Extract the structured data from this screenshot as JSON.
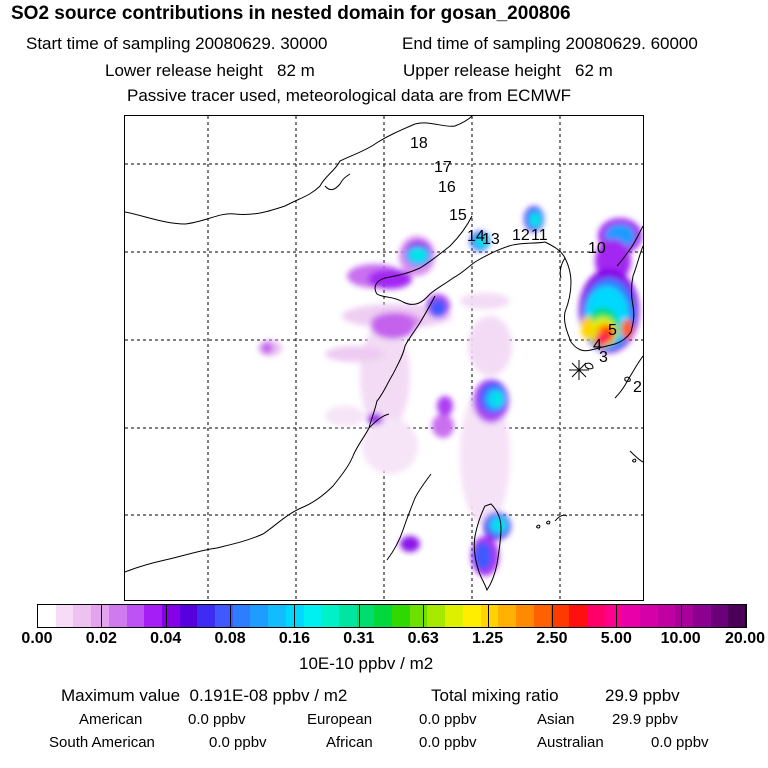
{
  "title": "SO2 source contributions in nested domain for gosan_200806",
  "header": {
    "start_label": "Start time of sampling",
    "start_value": "20080629. 30000",
    "end_label": "End time of sampling",
    "end_value": "20080629. 60000",
    "lower_label": "Lower release height",
    "lower_value": "82 m",
    "upper_label": "Upper release height",
    "upper_value": "62 m",
    "note": "Passive tracer used, meteorological data are from ECMWF"
  },
  "map": {
    "markers": [
      "18",
      "17",
      "16",
      "15",
      "14",
      "13",
      "12",
      "11",
      "10",
      "5",
      "4",
      "3",
      "2"
    ],
    "receptor": "gosan",
    "colors": {
      "coast": "#000000",
      "grid": "#000000"
    }
  },
  "colorbar": {
    "tick_labels": [
      "0.00",
      "0.02",
      "0.04",
      "0.08",
      "0.16",
      "0.31",
      "0.63",
      "1.25",
      "2.50",
      "5.00",
      "10.00",
      "20.00"
    ],
    "colors": [
      "#ffffff",
      "#f6dcf7",
      "#eec2f0",
      "#e3a3ee",
      "#cf7aef",
      "#bd52f5",
      "#a41ef5",
      "#8400e8",
      "#5600e0",
      "#3f2cf2",
      "#3f58ff",
      "#2f7dff",
      "#1f9cff",
      "#12bcff",
      "#00d8ff",
      "#00eff0",
      "#00f0c8",
      "#00e6a0",
      "#00dc6e",
      "#00d83c",
      "#2ed800",
      "#6ee000",
      "#a6e800",
      "#dcf000",
      "#ffee00",
      "#ffd200",
      "#ffb000",
      "#ff8a00",
      "#ff6000",
      "#ff3a00",
      "#ff1010",
      "#ff0068",
      "#ff0090",
      "#ea00a8",
      "#d600a8",
      "#c000a0",
      "#a8009a",
      "#8c0090",
      "#6c0078",
      "#4a0058"
    ],
    "unit": "10E-10 ppbv / m2"
  },
  "summary": {
    "max_label": "Maximum value",
    "max_value": "0.191E-08 ppbv / m2",
    "total_label": "Total mixing ratio",
    "total_value": "29.9 ppbv",
    "regions": [
      {
        "name": "American",
        "value": "0.0 ppbv"
      },
      {
        "name": "European",
        "value": "0.0 ppbv"
      },
      {
        "name": "Asian",
        "value": "29.9 ppbv"
      },
      {
        "name": "South American",
        "value": "0.0 ppbv"
      },
      {
        "name": "African",
        "value": "0.0 ppbv"
      },
      {
        "name": "Australian",
        "value": "0.0 ppbv"
      }
    ]
  }
}
